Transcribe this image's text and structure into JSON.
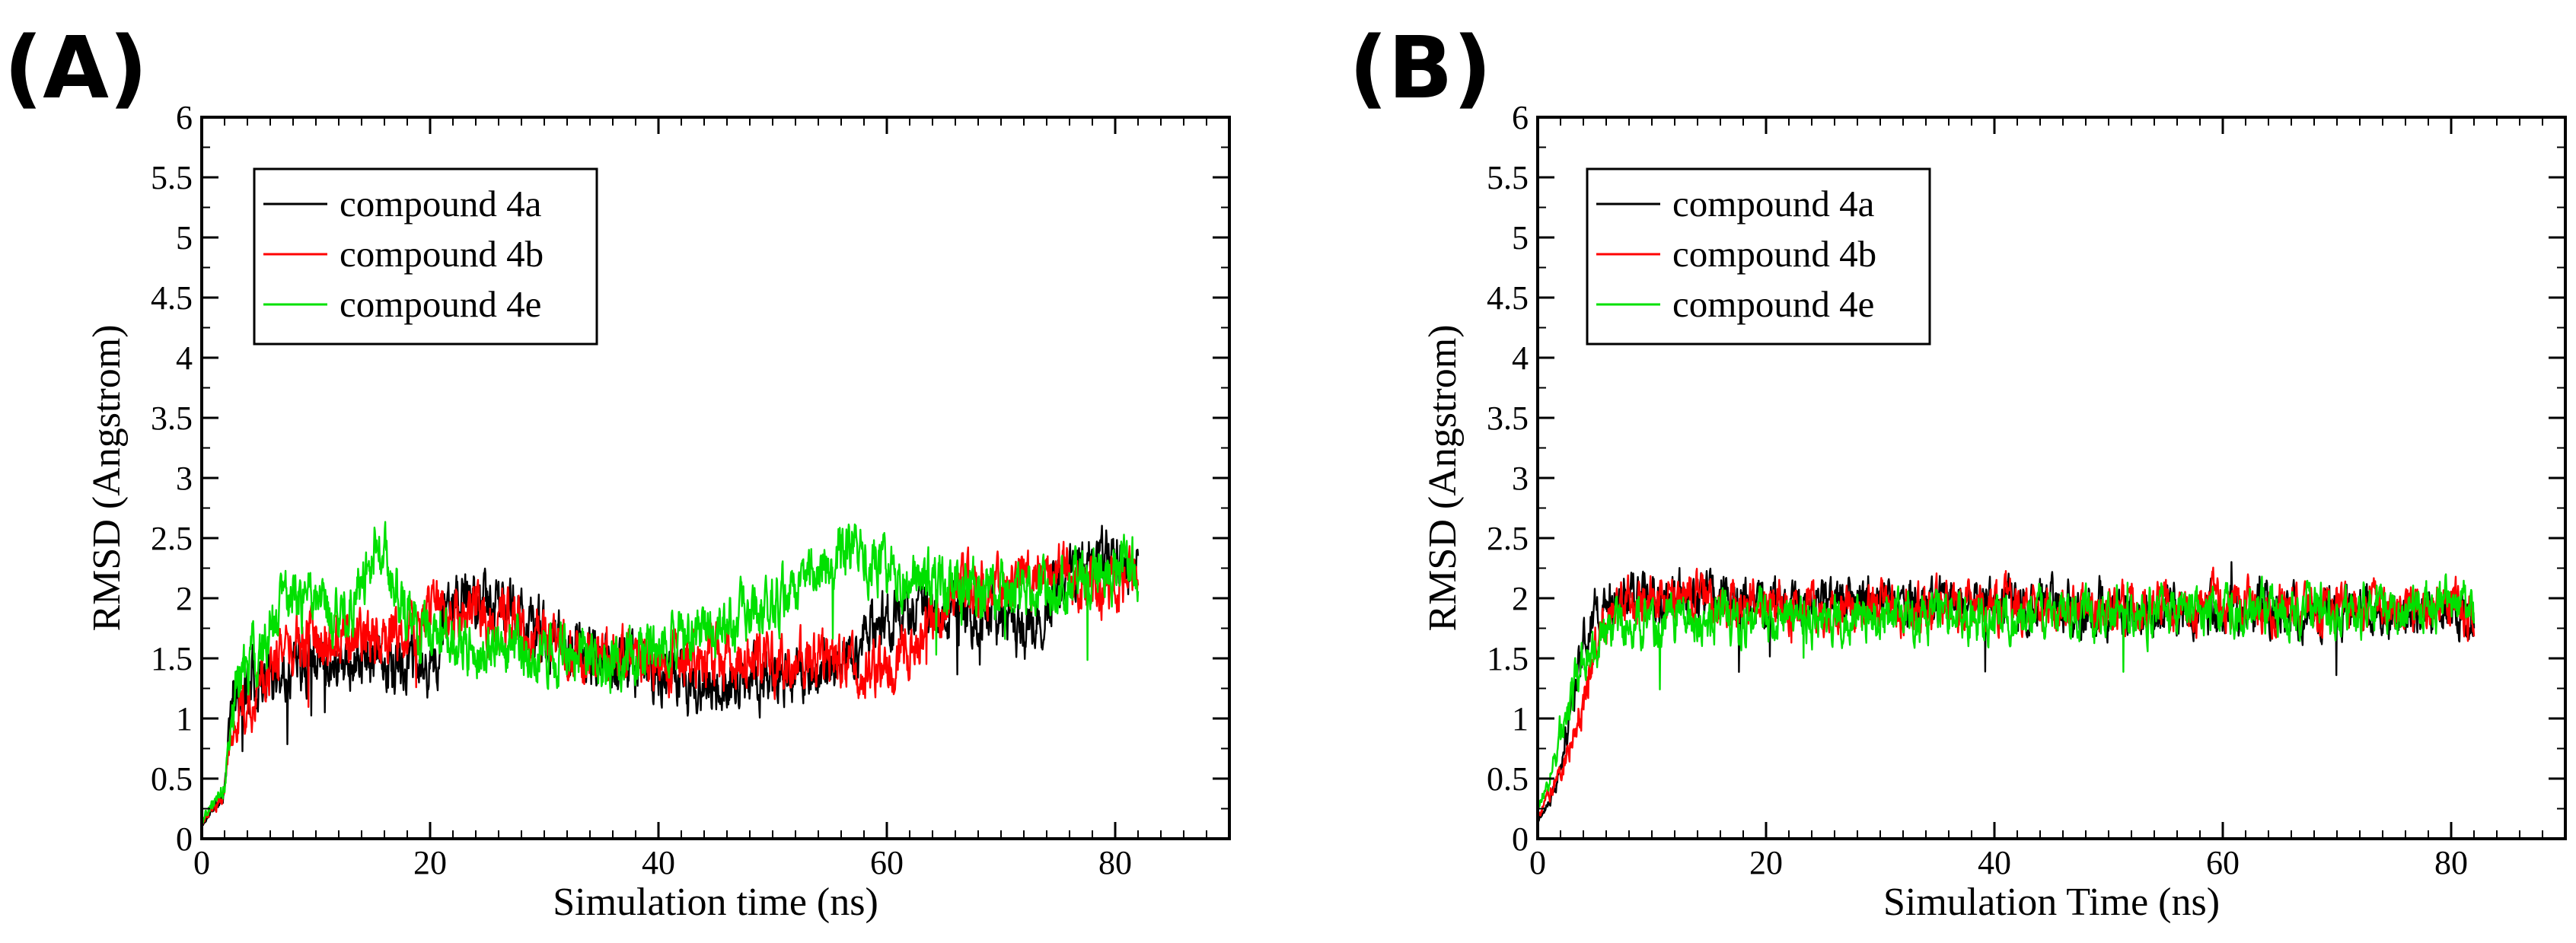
{
  "chart_data": [
    {
      "panel_label": "(A)",
      "type": "line",
      "xlabel": "Simulation time (ns)",
      "ylabel": "RMSD (Angstrom)",
      "xlim": [
        0,
        90
      ],
      "ylim": [
        0,
        6
      ],
      "xticks": [
        0,
        20,
        40,
        60,
        80
      ],
      "xtick_labels": [
        "0",
        "20",
        "40",
        "60",
        "80"
      ],
      "yticks": [
        0,
        0.5,
        1,
        1.5,
        2,
        2.5,
        3,
        3.5,
        4,
        4.5,
        5,
        5.5,
        6
      ],
      "ytick_labels": [
        "0",
        "0.5",
        "1",
        "1.5",
        "2",
        "2.5",
        "3",
        "3.5",
        "4",
        "4.5",
        "5",
        "5.5",
        "6"
      ],
      "legend_position": "top-left",
      "x_range": [
        0,
        82
      ],
      "series": [
        {
          "name": "compound 4a",
          "color": "#000000",
          "seed": 11,
          "noise": 0.17,
          "trend": [
            [
              0,
              0.1
            ],
            [
              1,
              0.25
            ],
            [
              2,
              0.4
            ],
            [
              2.6,
              1.1
            ],
            [
              4,
              1.3
            ],
            [
              8,
              1.45
            ],
            [
              12,
              1.5
            ],
            [
              16,
              1.45
            ],
            [
              20,
              1.4
            ],
            [
              22,
              1.95
            ],
            [
              26,
              1.95
            ],
            [
              30,
              1.7
            ],
            [
              36,
              1.45
            ],
            [
              40,
              1.4
            ],
            [
              44,
              1.25
            ],
            [
              48,
              1.3
            ],
            [
              52,
              1.35
            ],
            [
              56,
              1.5
            ],
            [
              60,
              1.85
            ],
            [
              64,
              1.85
            ],
            [
              68,
              1.85
            ],
            [
              72,
              1.7
            ],
            [
              76,
              2.2
            ],
            [
              79,
              2.35
            ],
            [
              82,
              2.2
            ]
          ]
        },
        {
          "name": "compound 4b",
          "color": "#ff0000",
          "seed": 23,
          "noise": 0.17,
          "trend": [
            [
              0,
              0.12
            ],
            [
              1,
              0.25
            ],
            [
              2,
              0.38
            ],
            [
              2.6,
              0.9
            ],
            [
              4,
              1.15
            ],
            [
              7,
              1.55
            ],
            [
              10,
              1.65
            ],
            [
              14,
              1.6
            ],
            [
              18,
              1.7
            ],
            [
              20,
              1.9
            ],
            [
              24,
              1.85
            ],
            [
              28,
              1.8
            ],
            [
              32,
              1.65
            ],
            [
              36,
              1.5
            ],
            [
              40,
              1.5
            ],
            [
              44,
              1.5
            ],
            [
              48,
              1.5
            ],
            [
              52,
              1.45
            ],
            [
              56,
              1.5
            ],
            [
              60,
              1.35
            ],
            [
              62,
              1.6
            ],
            [
              66,
              2.05
            ],
            [
              70,
              2.1
            ],
            [
              74,
              2.2
            ],
            [
              78,
              2.1
            ],
            [
              82,
              2.1
            ]
          ]
        },
        {
          "name": "compound 4e",
          "color": "#00e000",
          "seed": 37,
          "noise": 0.17,
          "trend": [
            [
              0,
              0.15
            ],
            [
              1,
              0.3
            ],
            [
              2,
              0.45
            ],
            [
              2.6,
              1.2
            ],
            [
              4,
              1.4
            ],
            [
              7,
              1.9
            ],
            [
              10,
              2.0
            ],
            [
              12,
              1.8
            ],
            [
              14,
              2.1
            ],
            [
              15.5,
              2.55
            ],
            [
              17,
              2.0
            ],
            [
              20,
              1.7
            ],
            [
              24,
              1.55
            ],
            [
              28,
              1.55
            ],
            [
              32,
              1.5
            ],
            [
              36,
              1.5
            ],
            [
              40,
              1.6
            ],
            [
              44,
              1.7
            ],
            [
              48,
              1.85
            ],
            [
              52,
              2.1
            ],
            [
              55,
              2.3
            ],
            [
              57,
              2.45
            ],
            [
              60,
              2.2
            ],
            [
              64,
              2.15
            ],
            [
              68,
              2.05
            ],
            [
              72,
              2.05
            ],
            [
              76,
              2.15
            ],
            [
              80,
              2.25
            ],
            [
              82,
              2.3
            ]
          ]
        }
      ]
    },
    {
      "panel_label": "(B)",
      "type": "line",
      "xlabel": "Simulation Time (ns)",
      "ylabel": "RMSD (Angstrom)",
      "xlim": [
        0,
        90
      ],
      "ylim": [
        0,
        6
      ],
      "xticks": [
        0,
        20,
        40,
        60,
        80
      ],
      "xtick_labels": [
        "0",
        "20",
        "40",
        "60",
        "80"
      ],
      "yticks": [
        0,
        0.5,
        1,
        1.5,
        2,
        2.5,
        3,
        3.5,
        4,
        4.5,
        5,
        5.5,
        6
      ],
      "ytick_labels": [
        "0",
        "0.5",
        "1",
        "1.5",
        "2",
        "2.5",
        "3",
        "3.5",
        "4",
        "4.5",
        "5",
        "5.5",
        "6"
      ],
      "legend_position": "top-left",
      "x_range": [
        0,
        82
      ],
      "series": [
        {
          "name": "compound 4a",
          "color": "#000000",
          "seed": 51,
          "noise": 0.14,
          "trend": [
            [
              0,
              0.15
            ],
            [
              1,
              0.3
            ],
            [
              2,
              0.6
            ],
            [
              3,
              1.1
            ],
            [
              4,
              1.6
            ],
            [
              5,
              1.95
            ],
            [
              8,
              2.0
            ],
            [
              12,
              2.0
            ],
            [
              20,
              1.95
            ],
            [
              30,
              2.0
            ],
            [
              40,
              1.95
            ],
            [
              50,
              1.9
            ],
            [
              60,
              1.9
            ],
            [
              70,
              1.9
            ],
            [
              82,
              1.85
            ]
          ]
        },
        {
          "name": "compound 4b",
          "color": "#ff0000",
          "seed": 63,
          "noise": 0.14,
          "trend": [
            [
              0,
              0.2
            ],
            [
              1,
              0.35
            ],
            [
              2,
              0.55
            ],
            [
              3,
              0.85
            ],
            [
              4,
              1.2
            ],
            [
              5,
              1.6
            ],
            [
              7,
              1.95
            ],
            [
              12,
              2.0
            ],
            [
              20,
              1.95
            ],
            [
              30,
              1.9
            ],
            [
              40,
              1.95
            ],
            [
              50,
              1.9
            ],
            [
              60,
              1.95
            ],
            [
              70,
              1.9
            ],
            [
              82,
              1.9
            ]
          ]
        },
        {
          "name": "compound 4e",
          "color": "#00e000",
          "seed": 77,
          "noise": 0.14,
          "trend": [
            [
              0,
              0.25
            ],
            [
              1,
              0.5
            ],
            [
              2,
              0.9
            ],
            [
              3,
              1.2
            ],
            [
              4,
              1.45
            ],
            [
              6,
              1.7
            ],
            [
              8,
              1.8
            ],
            [
              12,
              1.8
            ],
            [
              20,
              1.8
            ],
            [
              30,
              1.85
            ],
            [
              40,
              1.85
            ],
            [
              50,
              1.85
            ],
            [
              60,
              1.9
            ],
            [
              70,
              1.9
            ],
            [
              82,
              1.95
            ]
          ]
        }
      ]
    }
  ]
}
